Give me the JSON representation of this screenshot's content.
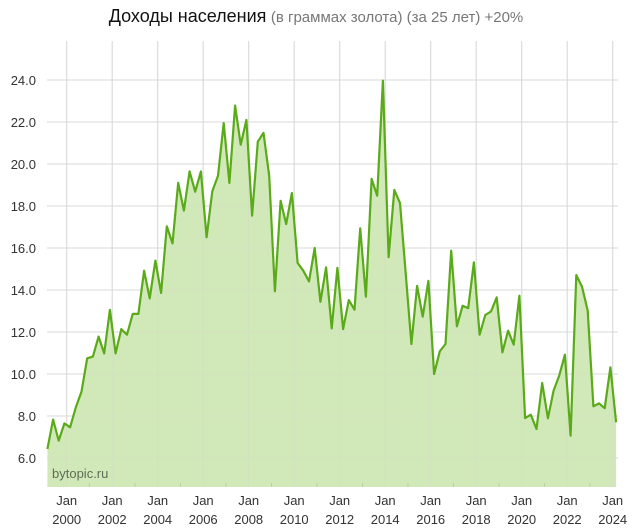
{
  "title": {
    "main": "Доходы населения",
    "sub": "(в граммах золота) (за 25 лет) +20%"
  },
  "watermark": "bytopic.ru",
  "colors": {
    "line": "#5aaa1a",
    "fill": "#cfe8b4",
    "grid": "#d8d8d8"
  },
  "chart_data": {
    "type": "area",
    "title": "Доходы населения (в граммах золота) (за 25 лет) +20%",
    "xlabel": "",
    "ylabel": "",
    "x_start_year": 1999.15,
    "x_step_years": 0.25,
    "xlim": [
      1999.15,
      2024.2
    ],
    "ylim": [
      4.6,
      26.8
    ],
    "grid": true,
    "legend": "none",
    "y_ticks": [
      "6.0",
      "8.0",
      "10.0",
      "12.0",
      "14.0",
      "16.0",
      "18.0",
      "20.0",
      "22.0",
      "24.0"
    ],
    "y_tick_values": [
      6,
      8,
      10,
      12,
      14,
      16,
      18,
      20,
      22,
      24
    ],
    "x_ticks": [
      {
        "year": 2000,
        "month": "Jan",
        "label": "2000"
      },
      {
        "year": 2002,
        "month": "Jan",
        "label": "2002"
      },
      {
        "year": 2004,
        "month": "Jan",
        "label": "2004"
      },
      {
        "year": 2006,
        "month": "Jan",
        "label": "2006"
      },
      {
        "year": 2008,
        "month": "Jan",
        "label": "2008"
      },
      {
        "year": 2010,
        "month": "Jan",
        "label": "2010"
      },
      {
        "year": 2012,
        "month": "Jan",
        "label": "2012"
      },
      {
        "year": 2014,
        "month": "Jan",
        "label": "2014"
      },
      {
        "year": 2016,
        "month": "Jan",
        "label": "2016"
      },
      {
        "year": 2018,
        "month": "Jan",
        "label": "2018"
      },
      {
        "year": 2020,
        "month": "Jan",
        "label": "2020"
      },
      {
        "year": 2022,
        "month": "Jan",
        "label": "2022"
      },
      {
        "year": 2024,
        "month": "Jan",
        "label": "2024"
      }
    ],
    "values": [
      6.43,
      7.83,
      6.83,
      7.65,
      7.46,
      8.41,
      9.16,
      10.75,
      10.83,
      11.78,
      10.98,
      13.05,
      10.98,
      12.14,
      11.87,
      12.86,
      12.86,
      14.92,
      13.6,
      15.4,
      13.86,
      17.03,
      16.22,
      19.1,
      17.78,
      19.65,
      18.68,
      19.65,
      16.51,
      18.7,
      19.44,
      21.95,
      19.1,
      22.78,
      20.92,
      22.1,
      17.54,
      21.06,
      21.48,
      19.44,
      13.94,
      18.25,
      17.14,
      18.62,
      15.29,
      14.92,
      14.41,
      16.0,
      13.44,
      15.08,
      12.17,
      15.05,
      12.14,
      13.52,
      13.06,
      16.94,
      13.68,
      19.29,
      18.49,
      23.97,
      15.56,
      18.76,
      18.14,
      14.8,
      11.43,
      14.2,
      12.73,
      14.44,
      10.0,
      11.08,
      11.43,
      15.87,
      12.27,
      13.25,
      13.14,
      15.32,
      11.87,
      12.81,
      12.98,
      13.65,
      11.03,
      12.06,
      11.4,
      13.73,
      7.9,
      8.06,
      7.38,
      9.57,
      7.89,
      9.21,
      9.92,
      10.92,
      7.06,
      14.71,
      14.16,
      13.02,
      8.46,
      8.6,
      8.37,
      10.32,
      7.7
    ]
  }
}
